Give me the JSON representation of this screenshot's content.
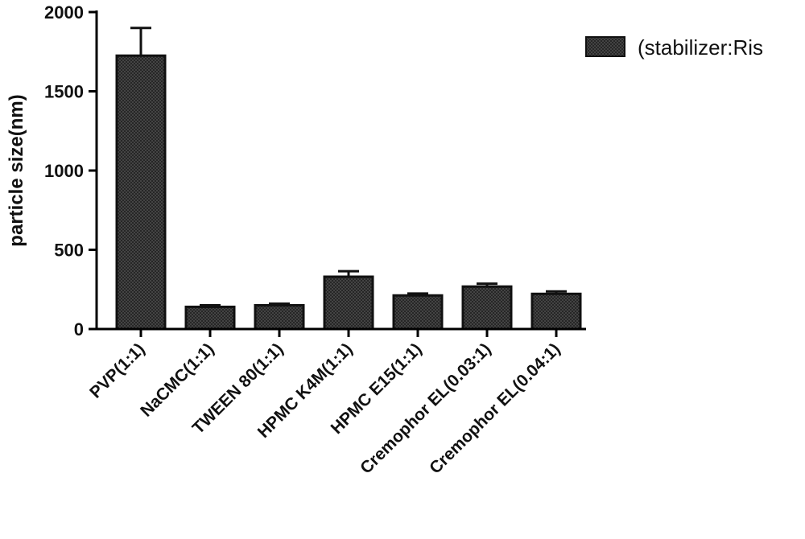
{
  "chart_data": {
    "type": "bar",
    "categories": [
      "PVP(1:1)",
      "NaCMC(1:1)",
      "TWEEN 80(1:1)",
      "HPMC K4M(1:1)",
      "HPMC E15(1:1)",
      "Cremophor EL(0.03:1)",
      "Cremophor EL(0.04:1)"
    ],
    "series": [
      {
        "name": "(stabilizer:Ris",
        "values": [
          1725,
          140,
          150,
          330,
          212,
          268,
          222
        ],
        "error": [
          175,
          10,
          10,
          35,
          12,
          18,
          15
        ]
      }
    ],
    "title": "",
    "xlabel": "",
    "ylabel": "particle size(nm)",
    "ylim": [
      0,
      2000
    ],
    "yticks": [
      0,
      500,
      1000,
      1500,
      2000
    ],
    "grid": false,
    "legend_position": "top-right",
    "colors": {
      "bar_fill": "#3a3a3a",
      "bar_edge": "#111111",
      "axis": "#000000"
    }
  }
}
